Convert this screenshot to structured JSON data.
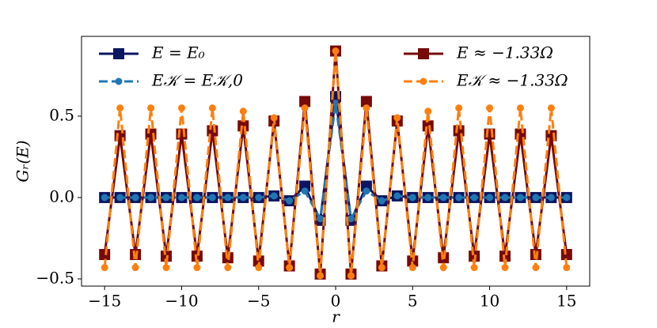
{
  "chart_data": {
    "type": "line",
    "xlabel": "r",
    "ylabel": "Gᵣ(E)",
    "x": [
      -15,
      -14,
      -13,
      -12,
      -11,
      -10,
      -9,
      -8,
      -7,
      -6,
      -5,
      -4,
      -3,
      -2,
      -1,
      0,
      1,
      2,
      3,
      4,
      5,
      6,
      7,
      8,
      9,
      10,
      11,
      12,
      13,
      14,
      15
    ],
    "series": [
      {
        "name": "E = E₀",
        "color": "#0b1561",
        "marker": "square",
        "linestyle": "solid",
        "values": [
          0,
          0,
          0,
          0,
          0,
          0,
          0,
          0,
          0,
          0,
          0,
          0.01,
          -0.02,
          0.07,
          -0.14,
          0.62,
          -0.14,
          0.07,
          -0.02,
          0.01,
          0,
          0,
          0,
          0,
          0,
          0,
          0,
          0,
          0,
          0,
          0
        ]
      },
      {
        "name": "E𝒦 = E𝒦,0",
        "color": "#1f77b4",
        "marker": "circle",
        "linestyle": "dashed",
        "values": [
          0,
          0,
          0,
          0,
          0,
          0,
          0,
          0,
          0,
          0,
          0,
          0.01,
          -0.02,
          0.04,
          -0.13,
          0.58,
          -0.13,
          0.04,
          -0.02,
          0.01,
          0,
          0,
          0,
          0,
          0,
          0,
          0,
          0,
          0,
          0,
          0
        ]
      },
      {
        "name": "E ≈ −1.33Ω",
        "color": "#760a0a",
        "marker": "square",
        "linestyle": "solid",
        "values": [
          -0.35,
          0.38,
          -0.35,
          0.39,
          -0.36,
          0.39,
          -0.36,
          0.41,
          -0.37,
          0.44,
          -0.39,
          0.47,
          -0.42,
          0.59,
          -0.47,
          0.9,
          -0.47,
          0.59,
          -0.42,
          0.47,
          -0.39,
          0.44,
          -0.37,
          0.41,
          -0.36,
          0.39,
          -0.36,
          0.39,
          -0.35,
          0.38,
          -0.35
        ]
      },
      {
        "name": "E𝒦 ≈ −1.33Ω",
        "color": "#ff7f0e",
        "marker": "circle",
        "linestyle": "dashed",
        "values": [
          -0.43,
          0.55,
          -0.43,
          0.55,
          -0.43,
          0.55,
          -0.43,
          0.55,
          -0.43,
          0.53,
          -0.43,
          0.49,
          -0.43,
          0.55,
          -0.48,
          0.9,
          -0.48,
          0.55,
          -0.43,
          0.49,
          -0.43,
          0.53,
          -0.43,
          0.55,
          -0.43,
          0.55,
          -0.43,
          0.55,
          -0.43,
          0.55,
          -0.43
        ]
      }
    ],
    "xlim": [
      -16.5,
      16.5
    ],
    "ylim": [
      -0.544,
      0.99
    ],
    "xticks": [
      {
        "value": -15,
        "label": "−15"
      },
      {
        "value": -10,
        "label": "−10"
      },
      {
        "value": -5,
        "label": "−5"
      },
      0,
      5,
      10,
      15
    ],
    "yticks": [
      {
        "value": -0.5,
        "label": "−0.5"
      },
      {
        "value": 0,
        "label": "0.0"
      },
      0.5
    ],
    "legend_loc": "upper center",
    "legend_ncol": 2,
    "grid": false
  }
}
